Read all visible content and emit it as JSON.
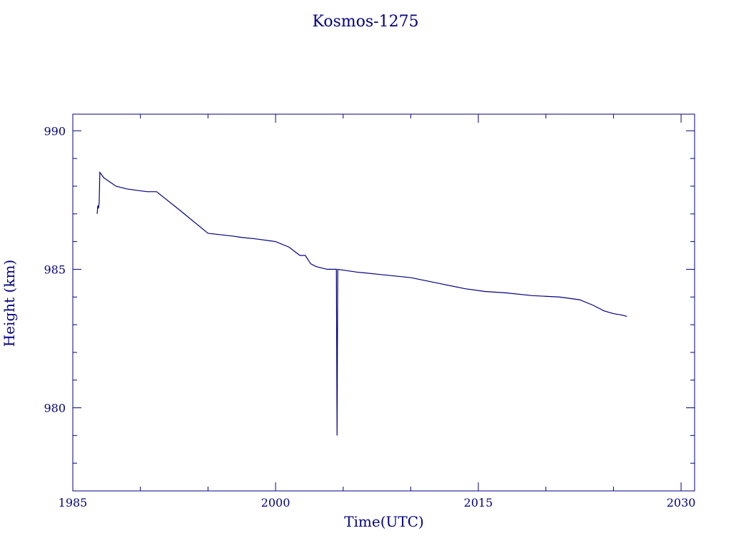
{
  "chart_data": {
    "type": "line",
    "title": "Kosmos-1275",
    "xlabel": "Time(UTC)",
    "ylabel": "Height (km)",
    "xlim": [
      1985.0,
      2031.0
    ],
    "ylim": [
      977.0,
      990.6
    ],
    "x_ticks": [
      1985,
      2000,
      2015,
      2030
    ],
    "y_ticks": [
      980,
      985,
      990
    ],
    "grid": false,
    "colors": {
      "line": "#000080",
      "text": "#000080",
      "axes": "#000080"
    },
    "series": [
      {
        "x": [
          1986.8,
          1986.85,
          1986.9,
          1986.95,
          1987.0,
          1987.3,
          1987.6,
          1988.2,
          1989.0,
          1990.5,
          1991.2,
          1993.0,
          1995.0,
          1996.8,
          1997.5,
          1998.5,
          2000.0,
          2001.0,
          2001.8,
          2002.2,
          2002.6,
          2003.0,
          2003.8,
          2004.2,
          2004.5,
          2004.55,
          2004.6,
          2006.0,
          2008.0,
          2010.0,
          2012.0,
          2014.0,
          2015.5,
          2017.0,
          2019.0,
          2021.0,
          2022.5,
          2023.5,
          2024.3,
          2025.0,
          2025.6,
          2026.0
        ],
        "y": [
          987.0,
          987.3,
          987.2,
          987.4,
          988.5,
          988.3,
          988.2,
          988.0,
          987.9,
          987.8,
          987.8,
          987.1,
          986.3,
          986.2,
          986.15,
          986.1,
          986.0,
          985.8,
          985.5,
          985.5,
          985.2,
          985.1,
          985.0,
          985.0,
          985.0,
          979.0,
          985.0,
          984.9,
          984.8,
          984.7,
          984.5,
          984.3,
          984.2,
          984.15,
          984.05,
          984.0,
          983.9,
          983.7,
          983.5,
          983.4,
          983.35,
          983.3
        ]
      }
    ]
  }
}
